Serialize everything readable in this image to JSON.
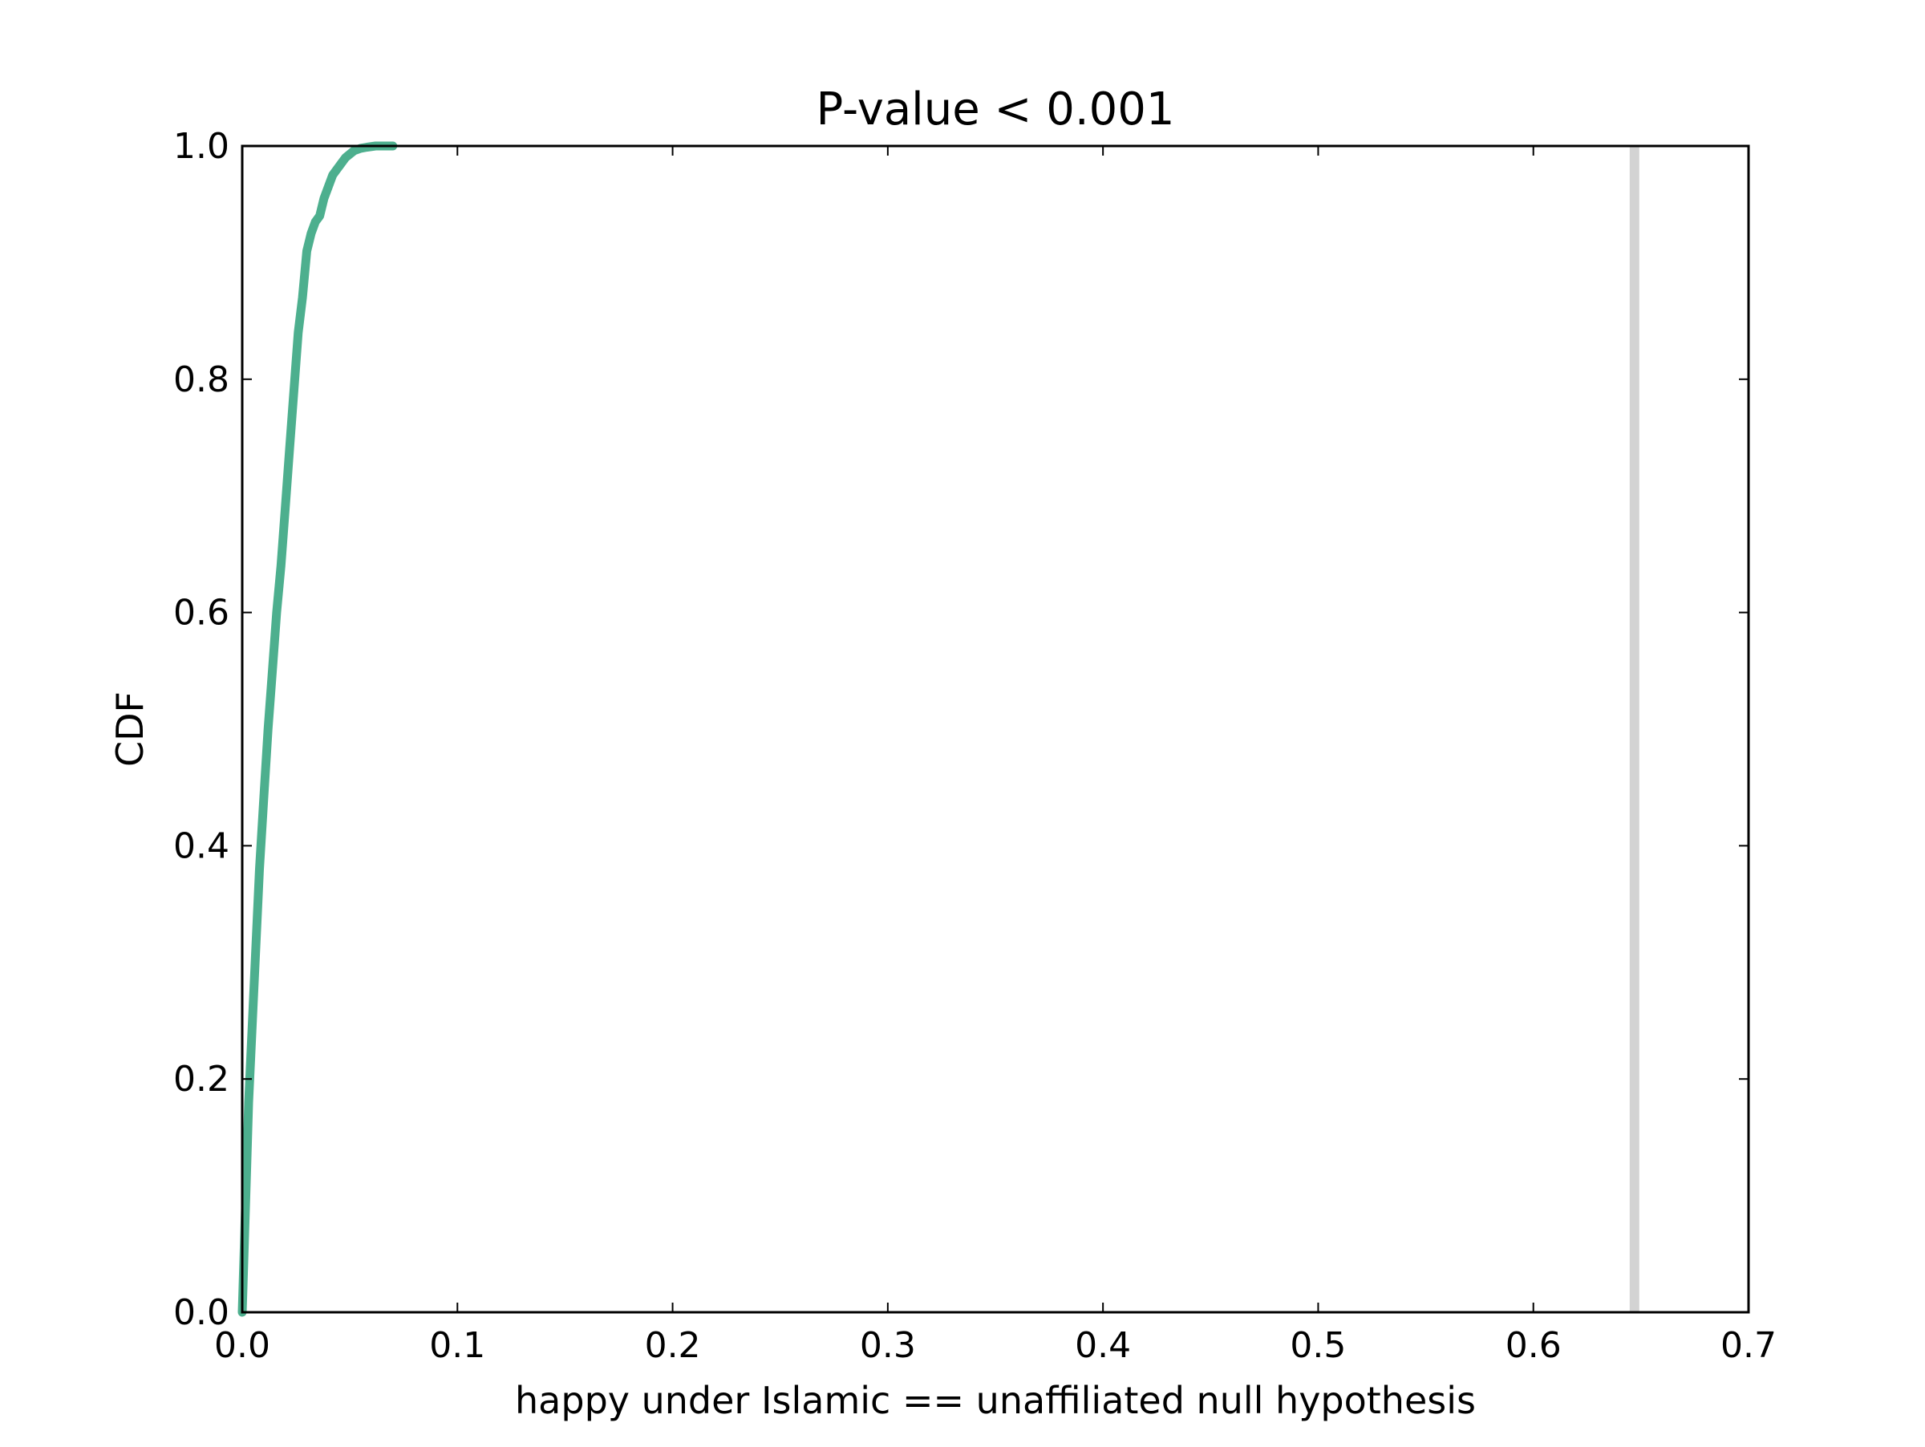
{
  "chart_data": {
    "type": "line",
    "title": "P-value < 0.001",
    "xlabel": "happy under Islamic == unaffiliated null hypothesis",
    "ylabel": "CDF",
    "xlim": [
      0.0,
      0.7
    ],
    "ylim": [
      0.0,
      1.0
    ],
    "xticks": [
      "0.0",
      "0.1",
      "0.2",
      "0.3",
      "0.4",
      "0.5",
      "0.6",
      "0.7"
    ],
    "yticks": [
      "0.0",
      "0.2",
      "0.4",
      "0.6",
      "0.8",
      "1.0"
    ],
    "grid": false,
    "series": [
      {
        "color": "#4daf8e",
        "x": [
          0.0,
          0.001,
          0.002,
          0.003,
          0.004,
          0.006,
          0.008,
          0.01,
          0.012,
          0.014,
          0.016,
          0.018,
          0.02,
          0.022,
          0.024,
          0.026,
          0.028,
          0.03,
          0.032,
          0.034,
          0.036,
          0.038,
          0.04,
          0.042,
          0.044,
          0.046,
          0.048,
          0.05,
          0.052,
          0.055,
          0.058,
          0.062,
          0.066,
          0.07
        ],
        "y": [
          0.0,
          0.06,
          0.12,
          0.18,
          0.22,
          0.3,
          0.38,
          0.44,
          0.5,
          0.55,
          0.6,
          0.64,
          0.69,
          0.74,
          0.79,
          0.84,
          0.87,
          0.91,
          0.925,
          0.935,
          0.94,
          0.955,
          0.965,
          0.975,
          0.98,
          0.985,
          0.99,
          0.993,
          0.996,
          0.998,
          0.999,
          1.0,
          1.0,
          1.0
        ]
      }
    ],
    "reference_line": {
      "x": 0.647,
      "color": "#d3d3d3"
    }
  }
}
